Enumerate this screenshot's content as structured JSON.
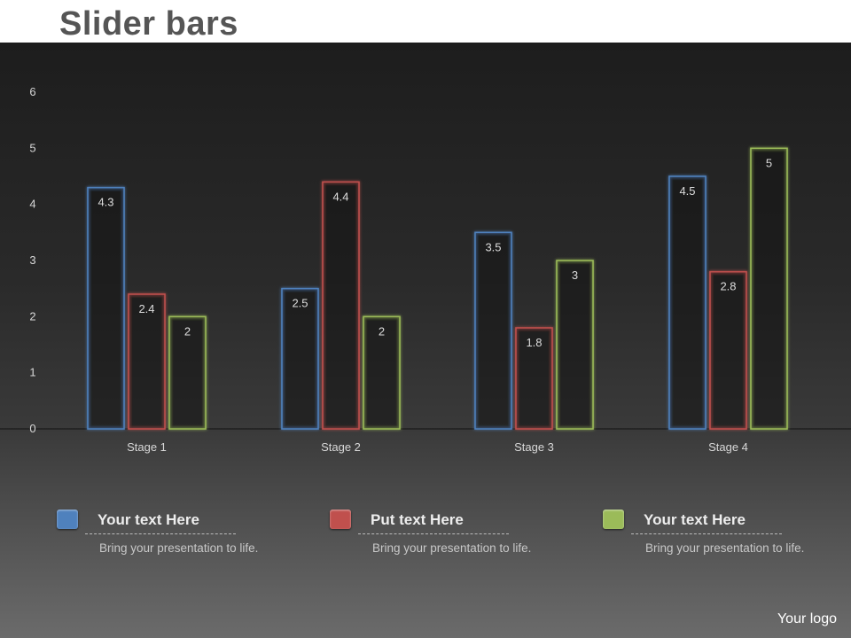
{
  "slide": {
    "title": "Slider bars",
    "logo": "Your logo"
  },
  "chart_data": {
    "type": "bar",
    "categories": [
      "Stage 1",
      "Stage 2",
      "Stage 3",
      "Stage 4"
    ],
    "series": [
      {
        "values": [
          4.3,
          2.5,
          3.5,
          4.5
        ],
        "color": "#4f81bd"
      },
      {
        "values": [
          2.4,
          4.4,
          1.8,
          2.8
        ],
        "color": "#c0504d"
      },
      {
        "values": [
          2,
          2,
          3,
          5
        ],
        "color": "#9bbb59"
      }
    ],
    "yticks": [
      0,
      1,
      2,
      3,
      4,
      5,
      6
    ],
    "ylim": [
      0,
      6
    ],
    "data_labels": true,
    "grid": false,
    "xlabel": "",
    "ylabel": ""
  },
  "legend": [
    {
      "heading": "Your text Here",
      "body": "Bring your presentation to life.",
      "color": "#4f81bd"
    },
    {
      "heading": "Put text Here",
      "body": "Bring your presentation to life.",
      "color": "#c0504d"
    },
    {
      "heading": "Your text Here",
      "body": "Bring your presentation to life.",
      "color": "#9bbb59"
    }
  ]
}
